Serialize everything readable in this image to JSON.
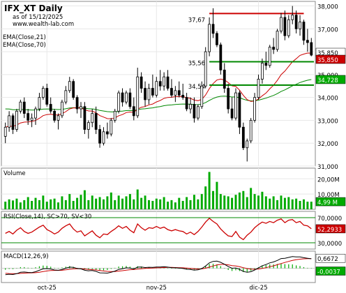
{
  "header": {
    "symbol_title": "IFX_XT Daily",
    "as_of": "as of 15/12/2025",
    "website": "www.wealth-lab.com",
    "ema21_label": "EMA(Close,21)",
    "ema70_label": "EMA(Close,70)"
  },
  "colors": {
    "up_candle": "#ffffff",
    "down_candle": "#000000",
    "ema21": "#cc0000",
    "ema70": "#008800",
    "volume": "#00aa00",
    "rsi": "#cc0000",
    "rsi_band": "#008800",
    "macd": "#000000",
    "macd_signal": "#cc0000",
    "macd_hist": "#00aa00",
    "resistance": "#cc0000",
    "support": "#008800",
    "last_price_tag": "#cc0000"
  },
  "chart_data": [
    {
      "type": "candlestick",
      "panel": "price",
      "x_labels": [
        "oct-25",
        "nov-25",
        "dic-25"
      ],
      "y_ticks": [
        31000,
        32000,
        33000,
        34000,
        35000,
        36000,
        37000,
        38000
      ],
      "y_tick_labels": [
        "31,000",
        "32,000",
        "33,000",
        "34,000",
        "35,000",
        "36,000",
        "37,000",
        "38,000"
      ],
      "ylim": [
        31000,
        38200
      ],
      "ohlc": [
        [
          32300,
          32900,
          32000,
          32700
        ],
        [
          32700,
          33400,
          32500,
          33200
        ],
        [
          33200,
          33300,
          32400,
          32600
        ],
        [
          32600,
          33500,
          32500,
          33400
        ],
        [
          33400,
          33900,
          33300,
          33800
        ],
        [
          33800,
          34000,
          33100,
          33300
        ],
        [
          33300,
          33500,
          32800,
          33000
        ],
        [
          33000,
          33300,
          32700,
          33100
        ],
        [
          33100,
          33600,
          32800,
          33500
        ],
        [
          33500,
          34200,
          33400,
          34000
        ],
        [
          34000,
          34500,
          33900,
          34400
        ],
        [
          34400,
          34600,
          33600,
          33700
        ],
        [
          33700,
          34000,
          33300,
          33400
        ],
        [
          33400,
          33500,
          32900,
          33000
        ],
        [
          33000,
          33300,
          32600,
          33200
        ],
        [
          33200,
          33900,
          33100,
          33800
        ],
        [
          33800,
          34500,
          33700,
          34300
        ],
        [
          34300,
          34900,
          34200,
          34700
        ],
        [
          34700,
          34800,
          33900,
          34000
        ],
        [
          34000,
          34100,
          33300,
          33500
        ],
        [
          33500,
          33800,
          33100,
          33600
        ],
        [
          33600,
          33800,
          32400,
          32600
        ],
        [
          32600,
          33000,
          32200,
          32900
        ],
        [
          32900,
          33500,
          32700,
          33300
        ],
        [
          33300,
          33600,
          32400,
          32600
        ],
        [
          32600,
          32800,
          31800,
          32000
        ],
        [
          32000,
          32700,
          31900,
          32500
        ],
        [
          32500,
          32900,
          32200,
          32400
        ],
        [
          32400,
          33100,
          32300,
          33000
        ],
        [
          33000,
          33500,
          32900,
          33400
        ],
        [
          33400,
          34300,
          33300,
          34200
        ],
        [
          34200,
          34400,
          33600,
          33800
        ],
        [
          33800,
          34300,
          33700,
          34200
        ],
        [
          34200,
          34400,
          33500,
          33600
        ],
        [
          33600,
          34000,
          33000,
          33200
        ],
        [
          33200,
          35300,
          33100,
          34900
        ],
        [
          34900,
          35100,
          34200,
          34400
        ],
        [
          34400,
          34700,
          33600,
          33900
        ],
        [
          33900,
          34600,
          33700,
          34400
        ],
        [
          34400,
          35000,
          34000,
          34100
        ],
        [
          34100,
          34900,
          34000,
          34700
        ],
        [
          34700,
          35200,
          34300,
          34500
        ],
        [
          34500,
          35100,
          34300,
          34900
        ],
        [
          34900,
          35200,
          34300,
          34400
        ],
        [
          34400,
          34800,
          34000,
          34100
        ],
        [
          34100,
          34500,
          33800,
          34300
        ],
        [
          34300,
          34700,
          34000,
          34100
        ],
        [
          34100,
          34600,
          33900,
          34000
        ],
        [
          34000,
          34200,
          33400,
          33500
        ],
        [
          33500,
          34000,
          33300,
          33700
        ],
        [
          33700,
          34000,
          32900,
          33100
        ],
        [
          33100,
          33700,
          33000,
          33600
        ],
        [
          33600,
          34700,
          33500,
          34500
        ],
        [
          34500,
          36200,
          34400,
          36000
        ],
        [
          36000,
          37500,
          35800,
          37200
        ],
        [
          37200,
          37900,
          36600,
          36800
        ],
        [
          36800,
          36900,
          36200,
          36300
        ],
        [
          36300,
          36400,
          35000,
          35200
        ],
        [
          35200,
          35500,
          34200,
          34400
        ],
        [
          34400,
          34600,
          33300,
          33500
        ],
        [
          33500,
          34000,
          33000,
          33100
        ],
        [
          33100,
          34400,
          33000,
          34200
        ],
        [
          34200,
          34300,
          32400,
          32700
        ],
        [
          32700,
          32900,
          31700,
          31800
        ],
        [
          31800,
          32200,
          31200,
          32100
        ],
        [
          32100,
          33100,
          32000,
          33000
        ],
        [
          33000,
          34200,
          32900,
          34000
        ],
        [
          34000,
          35000,
          33900,
          34800
        ],
        [
          34800,
          35700,
          34600,
          35500
        ],
        [
          35500,
          36000,
          35200,
          35400
        ],
        [
          35400,
          36300,
          35300,
          36200
        ],
        [
          36200,
          36600,
          35900,
          36100
        ],
        [
          36100,
          37000,
          36000,
          36900
        ],
        [
          36900,
          37700,
          36800,
          37500
        ],
        [
          37500,
          37800,
          36500,
          36700
        ],
        [
          36700,
          37600,
          36600,
          37400
        ],
        [
          37400,
          38000,
          37200,
          37600
        ],
        [
          37600,
          37800,
          36800,
          37000
        ],
        [
          37000,
          37600,
          36700,
          37300
        ],
        [
          37300,
          37400,
          36300,
          36500
        ],
        [
          36500,
          37000,
          36000,
          36400
        ],
        [
          36400,
          36600,
          35800,
          35850
        ]
      ],
      "ema21_label": "EMA(Close,21)",
      "ema70_label": "EMA(Close,70)",
      "ema21_last": "35,850",
      "ema70_last": "34,728",
      "last_price": "35,850",
      "resistance_level": 37670,
      "resistance_label": "37,67",
      "support_levels": [
        35560,
        34540
      ],
      "support_labels": [
        "35,56",
        "34,54"
      ]
    },
    {
      "type": "bar",
      "panel": "volume",
      "title": "Volume",
      "y_ticks": [
        10000000,
        20000000
      ],
      "y_tick_labels": [
        "10,00M",
        "20,00M"
      ],
      "ylim": [
        0,
        27000000
      ],
      "last_value_label": "4,99 M",
      "values": [
        5.0,
        6.5,
        5.8,
        7.0,
        4.5,
        6.0,
        8.0,
        5.5,
        7.5,
        6.0,
        9.0,
        5.0,
        6.5,
        7.0,
        4.5,
        8.5,
        6.0,
        10.0,
        5.5,
        7.5,
        9.5,
        12.5,
        6.0,
        9.0,
        7.0,
        8.0,
        6.5,
        8.5,
        11.0,
        6.0,
        9.0,
        7.0,
        8.5,
        10.0,
        6.5,
        13.0,
        7.5,
        9.0,
        6.0,
        5.5,
        7.0,
        6.5,
        8.0,
        5.0,
        6.0,
        4.5,
        7.5,
        5.5,
        8.0,
        6.0,
        9.5,
        6.5,
        10.0,
        15.0,
        24.5,
        12.0,
        18.0,
        10.0,
        9.0,
        8.5,
        7.5,
        9.5,
        11.0,
        12.0,
        8.0,
        14.0,
        10.0,
        9.0,
        11.5,
        8.5,
        7.0,
        8.5,
        6.0,
        9.0,
        7.5,
        8.0,
        6.5,
        7.0,
        5.5,
        6.5,
        5.0,
        4.99
      ]
    },
    {
      "type": "line",
      "panel": "rsi",
      "title": "RSI(Close,14), SC>70, SV<30",
      "y_ticks": [
        30,
        70
      ],
      "y_tick_labels": [
        "30,0000",
        "70,0000"
      ],
      "ylim": [
        20,
        80
      ],
      "last_value_label": "52,2933",
      "values": [
        45,
        48,
        44,
        50,
        54,
        48,
        45,
        47,
        51,
        55,
        58,
        51,
        48,
        44,
        47,
        53,
        57,
        60,
        52,
        47,
        49,
        41,
        45,
        49,
        42,
        38,
        44,
        43,
        48,
        52,
        57,
        53,
        56,
        50,
        46,
        60,
        54,
        50,
        54,
        53,
        56,
        53,
        55,
        51,
        49,
        51,
        49,
        48,
        44,
        47,
        43,
        48,
        55,
        63,
        69,
        64,
        60,
        52,
        46,
        41,
        40,
        48,
        39,
        35,
        42,
        47,
        54,
        59,
        63,
        61,
        64,
        62,
        66,
        68,
        62,
        66,
        67,
        62,
        64,
        58,
        57,
        52.29
      ]
    },
    {
      "type": "line",
      "panel": "macd",
      "title": "MACD(12,26,9)",
      "last_value_labels": [
        "0,6672",
        "-0,0037"
      ],
      "ylim": [
        -1,
        1.2
      ],
      "macd_values": [
        -0.45,
        -0.42,
        -0.44,
        -0.38,
        -0.28,
        -0.26,
        -0.29,
        -0.3,
        -0.24,
        -0.14,
        -0.04,
        -0.02,
        -0.05,
        -0.12,
        -0.14,
        -0.09,
        0.0,
        0.08,
        0.06,
        -0.01,
        -0.04,
        -0.14,
        -0.18,
        -0.16,
        -0.22,
        -0.32,
        -0.33,
        -0.34,
        -0.28,
        -0.2,
        -0.08,
        -0.03,
        0.03,
        0.01,
        -0.05,
        0.08,
        0.09,
        0.05,
        0.07,
        0.06,
        0.09,
        0.09,
        0.11,
        0.08,
        0.04,
        0.03,
        0.01,
        -0.01,
        -0.07,
        -0.08,
        -0.13,
        -0.11,
        -0.02,
        0.16,
        0.38,
        0.48,
        0.5,
        0.42,
        0.28,
        0.12,
        0.0,
        0.02,
        -0.08,
        -0.22,
        -0.28,
        -0.24,
        -0.12,
        0.02,
        0.18,
        0.26,
        0.38,
        0.44,
        0.55,
        0.68,
        0.7,
        0.76,
        0.82,
        0.8,
        0.8,
        0.74,
        0.7,
        0.6672
      ],
      "signal_values": [
        -0.35,
        -0.37,
        -0.38,
        -0.38,
        -0.36,
        -0.34,
        -0.33,
        -0.32,
        -0.31,
        -0.28,
        -0.23,
        -0.19,
        -0.16,
        -0.15,
        -0.15,
        -0.14,
        -0.11,
        -0.07,
        -0.04,
        -0.03,
        -0.03,
        -0.05,
        -0.08,
        -0.1,
        -0.12,
        -0.16,
        -0.19,
        -0.22,
        -0.23,
        -0.23,
        -0.2,
        -0.17,
        -0.13,
        -0.1,
        -0.09,
        -0.06,
        -0.03,
        -0.01,
        0.0,
        0.01,
        0.03,
        0.04,
        0.05,
        0.06,
        0.06,
        0.05,
        0.04,
        0.03,
        0.01,
        -0.01,
        -0.03,
        -0.05,
        -0.04,
        0.0,
        0.08,
        0.16,
        0.23,
        0.27,
        0.27,
        0.24,
        0.19,
        0.16,
        0.11,
        0.04,
        -0.02,
        -0.06,
        -0.07,
        -0.05,
        -0.01,
        0.04,
        0.11,
        0.17,
        0.25,
        0.33,
        0.41,
        0.48,
        0.55,
        0.6,
        0.64,
        0.66,
        0.67,
        0.6709
      ]
    }
  ]
}
